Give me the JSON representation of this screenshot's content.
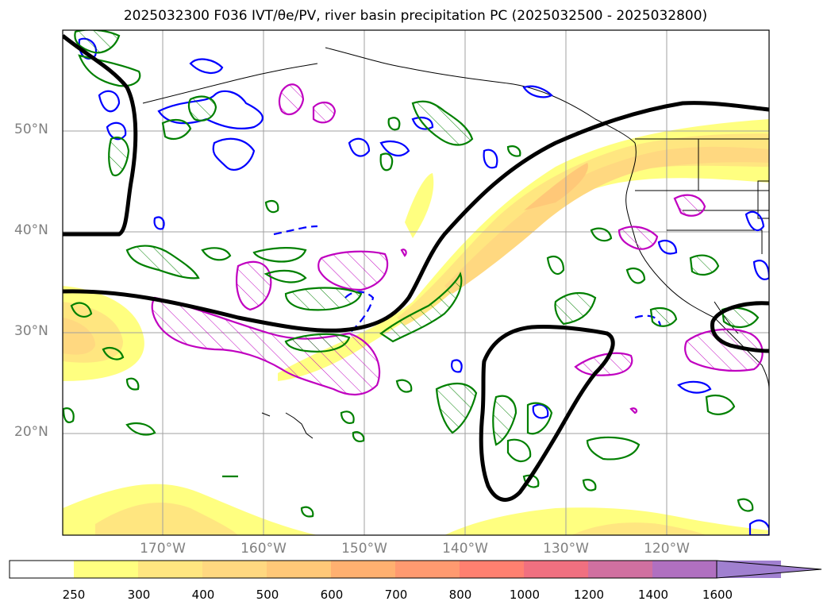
{
  "title": "2025032300 F036 IVT/θe/PV, river basin precipitation PC (2025032500 - 2025032800)",
  "map": {
    "lat_labels": [
      "50°N",
      "40°N",
      "30°N",
      "20°N"
    ],
    "lon_labels": [
      "170°W",
      "160°W",
      "150°W",
      "140°W",
      "130°W",
      "120°W"
    ]
  },
  "colorbar": {
    "labels": [
      "250",
      "300",
      "400",
      "500",
      "600",
      "700",
      "800",
      "1000",
      "1200",
      "1400",
      "1600"
    ],
    "colors": [
      "#ffffff",
      "#ffff80",
      "#ffe680",
      "#ffd880",
      "#ffc878",
      "#ffb070",
      "#ff9a70",
      "#ff8070",
      "#f07080",
      "#d070a0",
      "#b070c0",
      "#a080d0"
    ],
    "extend": "max"
  },
  "colors": {
    "contour_green": "#008000",
    "contour_blue": "#0000ff",
    "contour_magenta": "#c000c0",
    "contour_black": "#000000",
    "grid": "#a0a0a0"
  }
}
